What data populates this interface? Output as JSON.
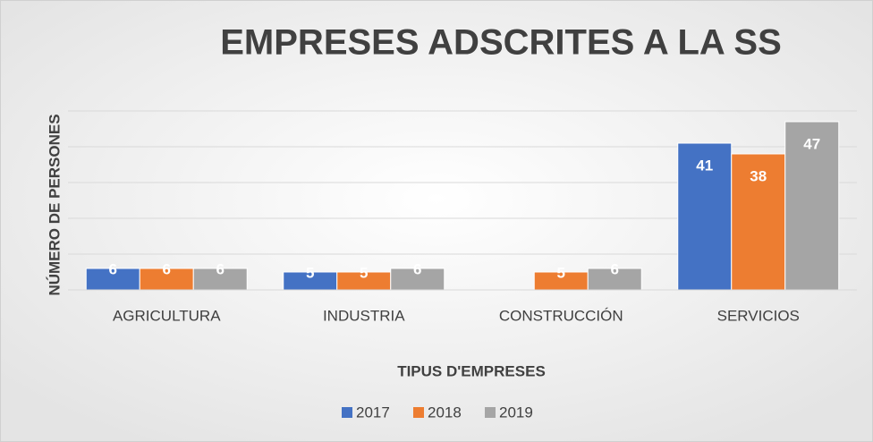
{
  "chart_data": {
    "type": "bar",
    "title": "EMPRESES ADSCRITES A LA SS",
    "x_label": "TIPUS D'EMPRESES",
    "y_label": "NÚMERO DE PERSONES",
    "categories": [
      "AGRICULTURA",
      "INDUSTRIA",
      "CONSTRUCCIÓN",
      "SERVICIOS"
    ],
    "series": [
      {
        "name": "2017",
        "color": "#4472c4",
        "values": [
          6,
          5,
          null,
          41
        ]
      },
      {
        "name": "2018",
        "color": "#ed7d31",
        "values": [
          6,
          5,
          5,
          38
        ]
      },
      {
        "name": "2019",
        "color": "#a5a5a5",
        "values": [
          6,
          6,
          6,
          47
        ]
      }
    ],
    "ylim": [
      0,
      50
    ],
    "yticks": [
      0,
      10,
      20,
      30,
      40,
      50
    ],
    "grid": true,
    "legend": "bottom"
  }
}
